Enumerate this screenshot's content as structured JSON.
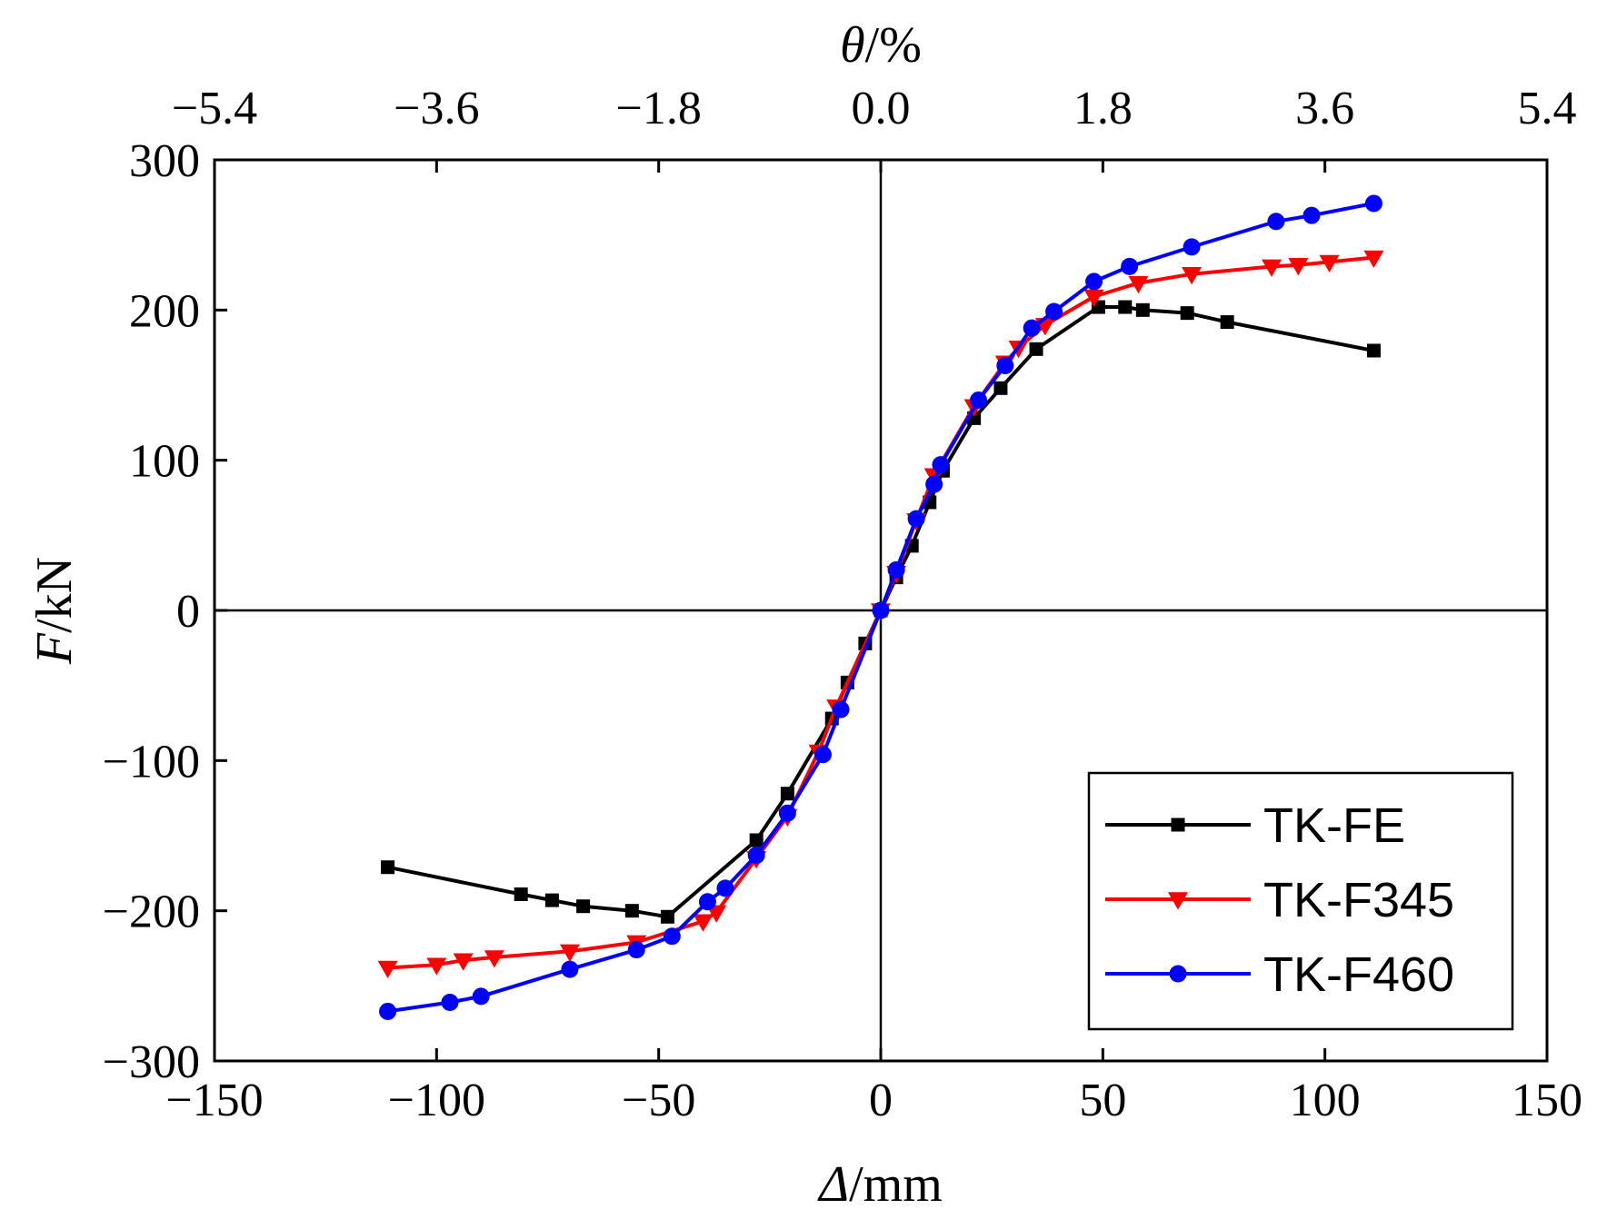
{
  "chart_data": {
    "type": "line",
    "x": {
      "label_symbol": "Δ",
      "label_unit": "/mm",
      "min": -150,
      "max": 150,
      "ticks": [
        -150,
        -100,
        -50,
        0,
        50,
        100,
        150
      ],
      "tick_labels": [
        "−150",
        "−100",
        "−50",
        "0",
        "50",
        "100",
        "150"
      ]
    },
    "y": {
      "label_symbol": "F",
      "label_unit": "/kN",
      "min": -300,
      "max": 300,
      "ticks": [
        -300,
        -200,
        -100,
        0,
        100,
        200,
        300
      ],
      "tick_labels": [
        "−300",
        "−200",
        "−100",
        "0",
        "100",
        "200",
        "300"
      ]
    },
    "x2": {
      "label_symbol": "θ",
      "label_unit": "/%",
      "min": -5.4,
      "max": 5.4,
      "ticks": [
        -5.4,
        -3.6,
        -1.8,
        0.0,
        1.8,
        3.6,
        5.4
      ],
      "tick_labels": [
        "−5.4",
        "−3.6",
        "−1.8",
        "0.0",
        "1.8",
        "3.6",
        "5.4"
      ]
    },
    "legend_position": "bottom-right",
    "series": [
      {
        "name": "TK-FE",
        "color": "#000000",
        "marker": "square",
        "points": [
          [
            -111,
            -171
          ],
          [
            -81,
            -189
          ],
          [
            -74,
            -193
          ],
          [
            -67,
            -197
          ],
          [
            -56,
            -200
          ],
          [
            -48,
            -204
          ],
          [
            -28,
            -153
          ],
          [
            -21,
            -122
          ],
          [
            -11,
            -72
          ],
          [
            -7.5,
            -48
          ],
          [
            -3.5,
            -22
          ],
          [
            0,
            0
          ],
          [
            3.5,
            22
          ],
          [
            7,
            43
          ],
          [
            11,
            72
          ],
          [
            14,
            93
          ],
          [
            21,
            128
          ],
          [
            27,
            148
          ],
          [
            35,
            174
          ],
          [
            49,
            202
          ],
          [
            55,
            202
          ],
          [
            59,
            200
          ],
          [
            69,
            198
          ],
          [
            78,
            192
          ],
          [
            111,
            173
          ]
        ]
      },
      {
        "name": "TK-F345",
        "color": "#ff0000",
        "marker": "triangle-down",
        "points": [
          [
            -111,
            -238
          ],
          [
            -100,
            -236
          ],
          [
            -94,
            -233
          ],
          [
            -87,
            -231
          ],
          [
            -70,
            -227
          ],
          [
            -55,
            -221
          ],
          [
            -40,
            -207
          ],
          [
            -37,
            -201
          ],
          [
            -28,
            -165
          ],
          [
            -21,
            -137
          ],
          [
            -14,
            -94
          ],
          [
            -10,
            -64
          ],
          [
            0,
            0
          ],
          [
            3.5,
            25
          ],
          [
            8,
            60
          ],
          [
            12,
            90
          ],
          [
            21,
            136
          ],
          [
            28,
            165
          ],
          [
            31,
            175
          ],
          [
            37,
            190
          ],
          [
            48,
            209
          ],
          [
            58,
            218
          ],
          [
            70,
            224
          ],
          [
            88,
            229
          ],
          [
            94,
            230
          ],
          [
            101,
            232
          ],
          [
            111,
            235
          ]
        ]
      },
      {
        "name": "TK-F460",
        "color": "#0000ff",
        "marker": "circle",
        "points": [
          [
            -111,
            -267
          ],
          [
            -97,
            -261
          ],
          [
            -90,
            -257
          ],
          [
            -70,
            -239
          ],
          [
            -55,
            -226
          ],
          [
            -47,
            -217
          ],
          [
            -39,
            -194
          ],
          [
            -35,
            -185
          ],
          [
            -28,
            -163
          ],
          [
            -21,
            -135
          ],
          [
            -13,
            -96
          ],
          [
            -9,
            -66
          ],
          [
            0,
            0
          ],
          [
            3.5,
            27
          ],
          [
            8,
            61
          ],
          [
            12,
            84
          ],
          [
            13.5,
            97
          ],
          [
            22,
            140
          ],
          [
            28,
            163
          ],
          [
            34,
            188
          ],
          [
            39,
            199
          ],
          [
            48,
            219
          ],
          [
            56,
            229
          ],
          [
            70,
            242
          ],
          [
            89,
            259
          ],
          [
            97,
            263
          ],
          [
            111,
            271
          ]
        ]
      }
    ]
  }
}
